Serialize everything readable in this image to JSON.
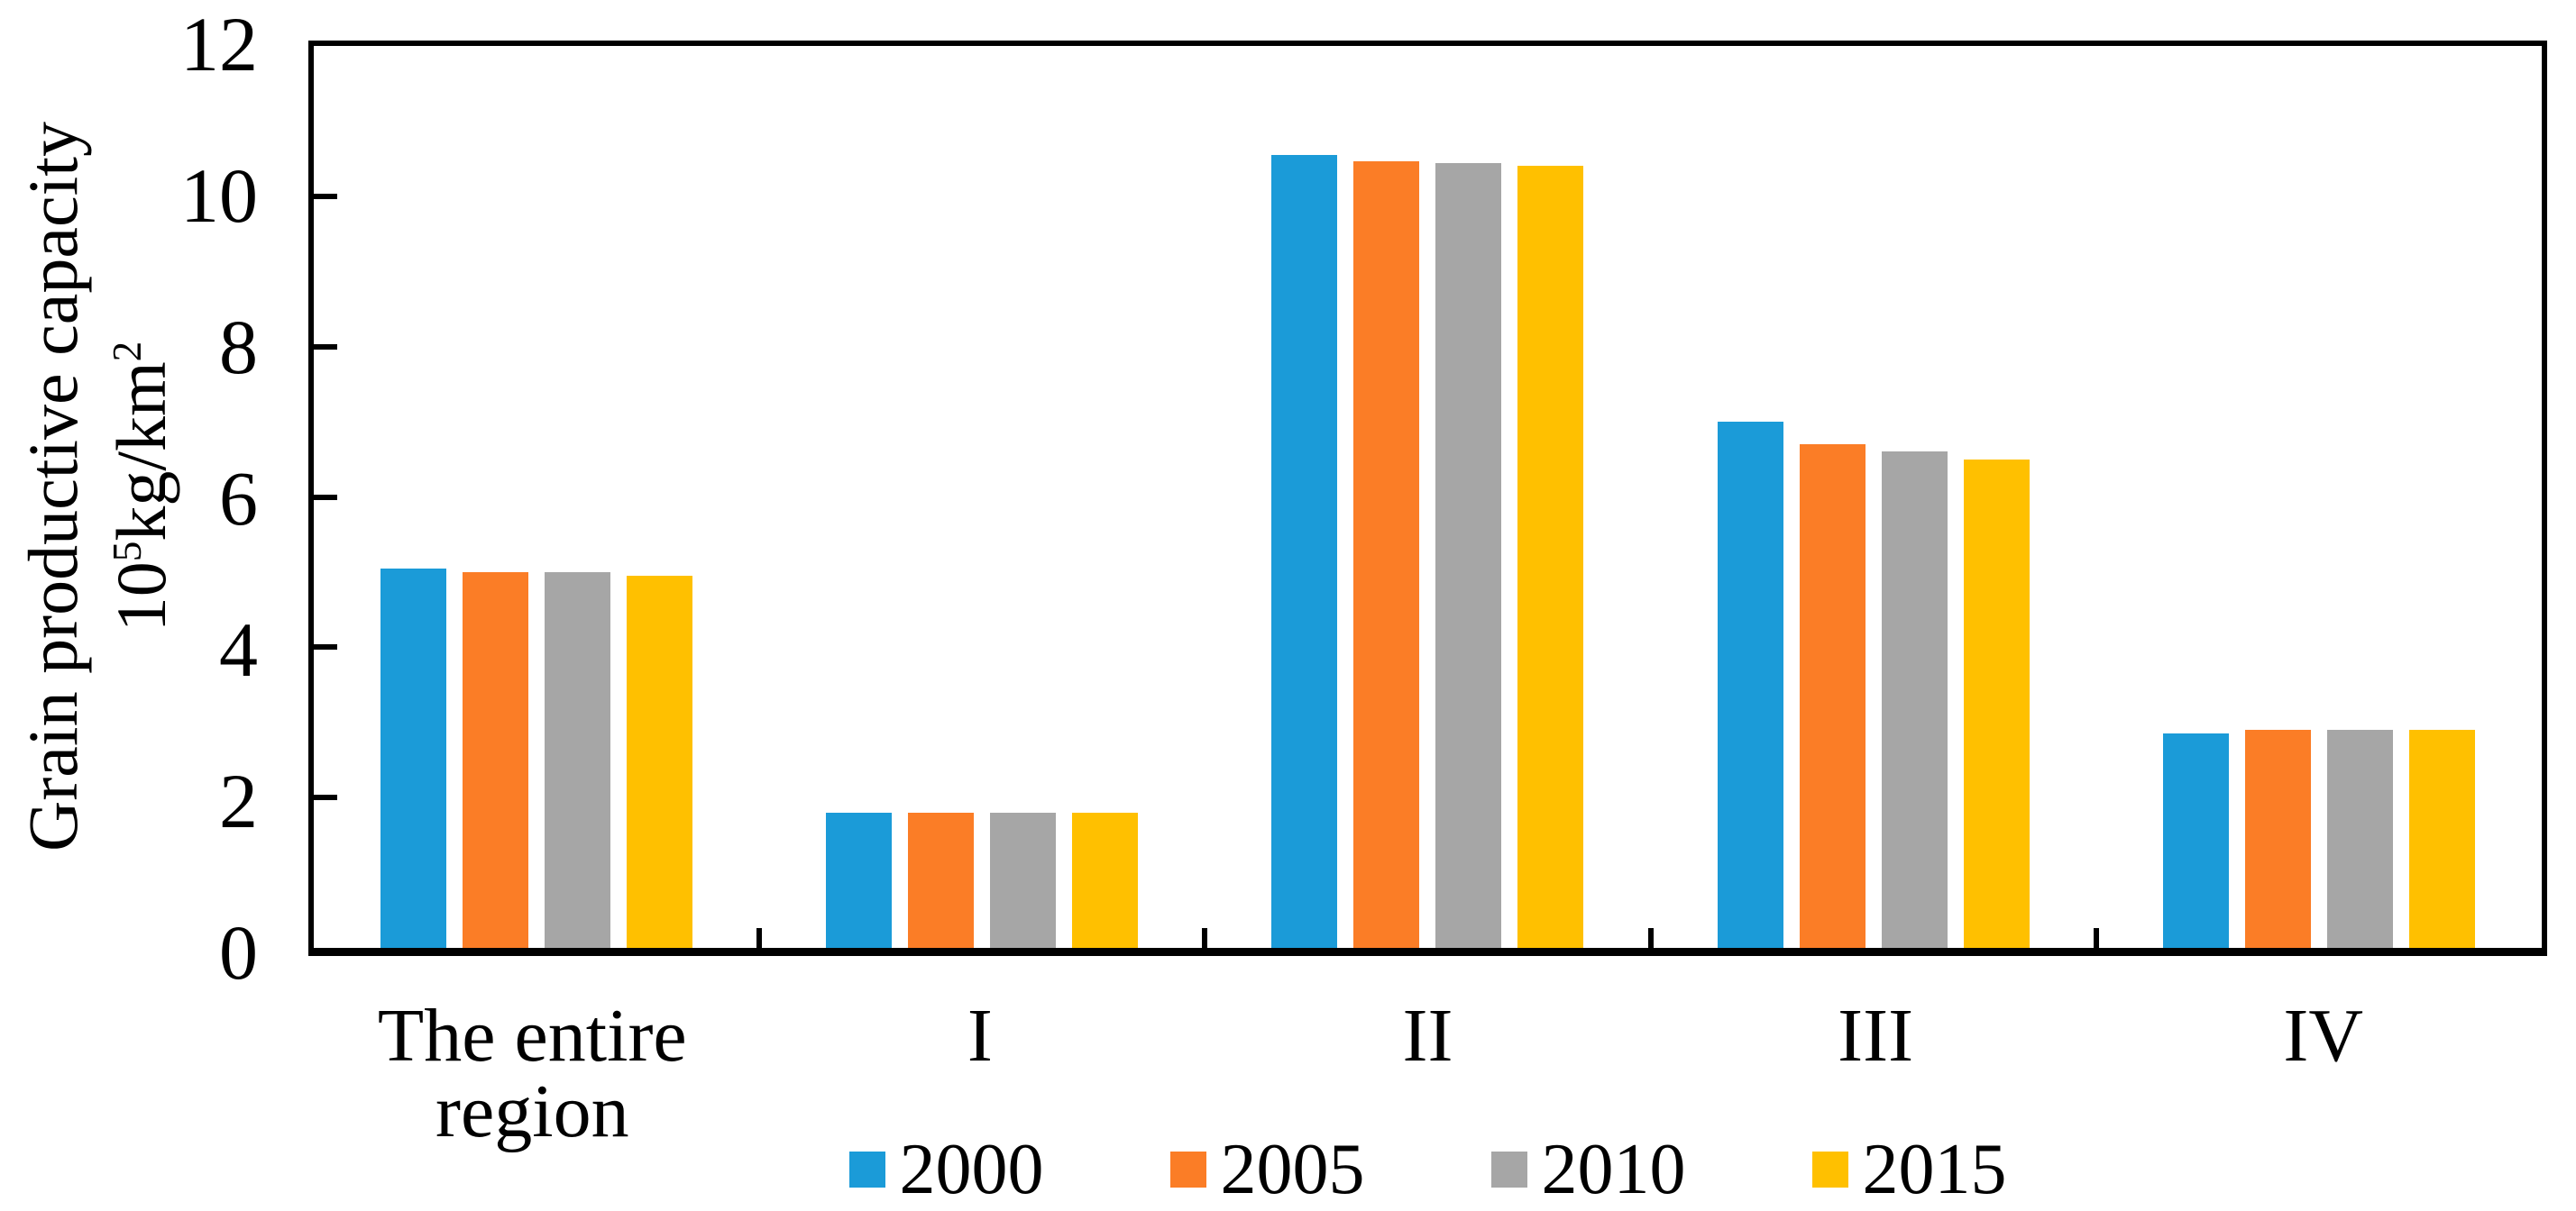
{
  "figure": {
    "background": "#ffffff",
    "text_color": "#000000",
    "axis_color": "#000000"
  },
  "y_axis": {
    "title_line1": "Grain productive capacity",
    "title_line2_base": "10",
    "title_line2_sup1": "5",
    "title_line2_mid": "kg/km",
    "title_line2_sup2": "2",
    "tick_labels": [
      "0",
      "2",
      "4",
      "6",
      "8",
      "10",
      "12"
    ]
  },
  "chart_data": {
    "type": "bar",
    "title": "",
    "xlabel": "",
    "ylabel": "Grain productive capacity 10⁵kg/km²",
    "ylim": [
      0,
      12
    ],
    "yticks": [
      0,
      2,
      4,
      6,
      8,
      10,
      12
    ],
    "grid": false,
    "legend_position": "bottom",
    "categories": [
      "The entire region",
      "I",
      "II",
      "III",
      "IV"
    ],
    "category_lines": [
      [
        "The entire",
        "region"
      ],
      [
        "I"
      ],
      [
        "II"
      ],
      [
        "III"
      ],
      [
        "IV"
      ]
    ],
    "series": [
      {
        "name": "2000",
        "color": "#1B9BD8",
        "values": [
          5.05,
          1.8,
          10.55,
          7.0,
          2.85
        ]
      },
      {
        "name": "2005",
        "color": "#FB7D26",
        "values": [
          5.0,
          1.8,
          10.47,
          6.7,
          2.9
        ]
      },
      {
        "name": "2010",
        "color": "#A6A6A6",
        "values": [
          5.0,
          1.8,
          10.44,
          6.6,
          2.9
        ]
      },
      {
        "name": "2015",
        "color": "#FFC000",
        "values": [
          4.95,
          1.8,
          10.4,
          6.5,
          2.9
        ]
      }
    ]
  }
}
